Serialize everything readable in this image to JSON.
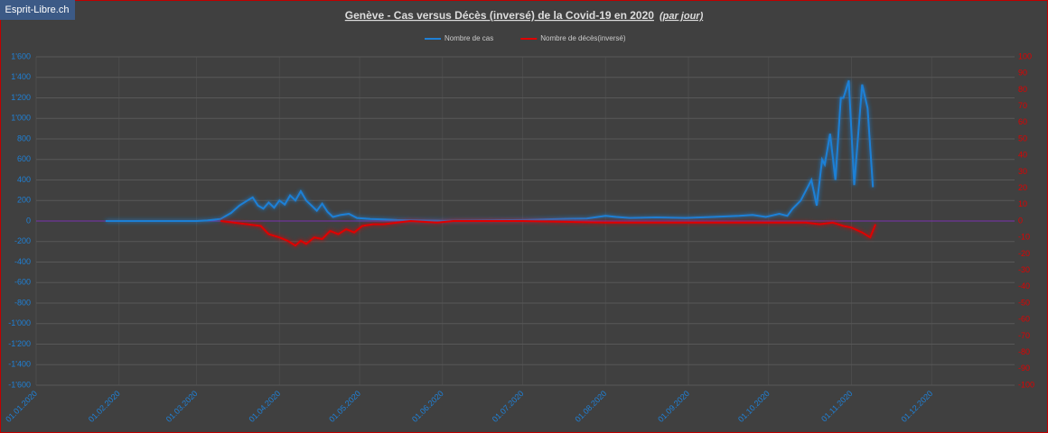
{
  "badge": "Esprit-Libre.ch",
  "chart_data": {
    "type": "line",
    "title": "Genève - Cas versus Décès (inversé) de la Covid-19 en 2020",
    "title_note": "(par jour)",
    "xlim": [
      "2020-01-01",
      "2021-01-01"
    ],
    "xticks": [
      {
        "value": "2020-01-01",
        "label": "01.01.2020"
      },
      {
        "value": "2020-02-01",
        "label": "01.02.2020"
      },
      {
        "value": "2020-03-01",
        "label": "01.03.2020"
      },
      {
        "value": "2020-04-01",
        "label": "01.04.2020"
      },
      {
        "value": "2020-05-01",
        "label": "01.05.2020"
      },
      {
        "value": "2020-06-01",
        "label": "01.06.2020"
      },
      {
        "value": "2020-07-01",
        "label": "01.07.2020"
      },
      {
        "value": "2020-08-01",
        "label": "01.08.2020"
      },
      {
        "value": "2020-09-01",
        "label": "01.09.2020"
      },
      {
        "value": "2020-10-01",
        "label": "01.10.2020"
      },
      {
        "value": "2020-11-01",
        "label": "01.11.2020"
      },
      {
        "value": "2020-12-01",
        "label": "01.12.2020"
      }
    ],
    "ylim": [
      -1600,
      1600
    ],
    "yticks": [
      {
        "value": 1600,
        "label": "1'600"
      },
      {
        "value": 1400,
        "label": "1'400"
      },
      {
        "value": 1200,
        "label": "1'200"
      },
      {
        "value": 1000,
        "label": "1'000"
      },
      800,
      600,
      400,
      200,
      0,
      -200,
      -400,
      -600,
      -800,
      {
        "value": -1000,
        "label": "-1'000"
      },
      {
        "value": -1200,
        "label": "-1'200"
      },
      {
        "value": -1400,
        "label": "-1'400"
      },
      {
        "value": -1600,
        "label": "-1'600"
      }
    ],
    "y2lim": [
      -100,
      100
    ],
    "y2ticks": [
      100,
      90,
      80,
      70,
      60,
      50,
      40,
      30,
      20,
      10,
      0,
      -10,
      -20,
      -30,
      -40,
      -50,
      -60,
      -70,
      -80,
      -90,
      -100
    ],
    "grid": true,
    "legend": "top",
    "series": [
      {
        "name": "Nombre de cas",
        "color": "#1f80d6",
        "x": [
          "2020-01-27",
          "2020-02-05",
          "2020-02-15",
          "2020-02-25",
          "2020-03-01",
          "2020-03-05",
          "2020-03-10",
          "2020-03-14",
          "2020-03-17",
          "2020-03-20",
          "2020-03-22",
          "2020-03-24",
          "2020-03-26",
          "2020-03-28",
          "2020-03-30",
          "2020-04-01",
          "2020-04-03",
          "2020-04-05",
          "2020-04-07",
          "2020-04-09",
          "2020-04-11",
          "2020-04-13",
          "2020-04-15",
          "2020-04-17",
          "2020-04-19",
          "2020-04-21",
          "2020-04-24",
          "2020-04-27",
          "2020-04-30",
          "2020-05-05",
          "2020-05-10",
          "2020-05-15",
          "2020-05-25",
          "2020-06-01",
          "2020-06-15",
          "2020-07-01",
          "2020-07-15",
          "2020-07-25",
          "2020-08-01",
          "2020-08-05",
          "2020-08-10",
          "2020-08-20",
          "2020-08-31",
          "2020-09-10",
          "2020-09-20",
          "2020-09-25",
          "2020-09-30",
          "2020-10-05",
          "2020-10-08",
          "2020-10-10",
          "2020-10-13",
          "2020-10-15",
          "2020-10-17",
          "2020-10-19",
          "2020-10-21",
          "2020-10-22",
          "2020-10-24",
          "2020-10-26",
          "2020-10-28",
          "2020-10-29",
          "2020-10-31",
          "2020-11-02",
          "2020-11-05",
          "2020-11-07",
          "2020-11-09"
        ],
        "values": [
          0,
          0,
          0,
          0,
          0,
          5,
          20,
          80,
          150,
          200,
          230,
          150,
          120,
          180,
          130,
          200,
          160,
          250,
          200,
          290,
          200,
          150,
          100,
          170,
          90,
          40,
          60,
          70,
          30,
          20,
          15,
          10,
          5,
          3,
          5,
          10,
          20,
          25,
          50,
          40,
          30,
          35,
          30,
          40,
          50,
          60,
          40,
          70,
          50,
          120,
          200,
          300,
          400,
          150,
          600,
          550,
          850,
          400,
          1200,
          1200,
          1370,
          350,
          1330,
          1100,
          330
        ]
      },
      {
        "name": "Nombre de décès(inversé)",
        "color": "#e00000",
        "axis": "y2",
        "x": [
          "2020-03-10",
          "2020-03-15",
          "2020-03-20",
          "2020-03-25",
          "2020-03-28",
          "2020-04-01",
          "2020-04-04",
          "2020-04-07",
          "2020-04-09",
          "2020-04-11",
          "2020-04-14",
          "2020-04-17",
          "2020-04-20",
          "2020-04-23",
          "2020-04-26",
          "2020-04-29",
          "2020-05-02",
          "2020-05-06",
          "2020-05-10",
          "2020-05-15",
          "2020-05-20",
          "2020-05-30",
          "2020-06-05",
          "2020-07-01",
          "2020-08-01",
          "2020-09-01",
          "2020-10-01",
          "2020-10-15",
          "2020-10-20",
          "2020-10-25",
          "2020-10-29",
          "2020-11-01",
          "2020-11-05",
          "2020-11-08",
          "2020-11-10"
        ],
        "values": [
          0,
          -1,
          -2,
          -3,
          -8,
          -10,
          -12,
          -15,
          -12,
          -14,
          -10,
          -11,
          -6,
          -8,
          -5,
          -7,
          -3,
          -2,
          -2,
          -1,
          0,
          -1,
          0,
          0,
          -1,
          -1,
          -1,
          -1,
          -2,
          -1,
          -3,
          -4,
          -7,
          -10,
          -2
        ]
      }
    ]
  }
}
